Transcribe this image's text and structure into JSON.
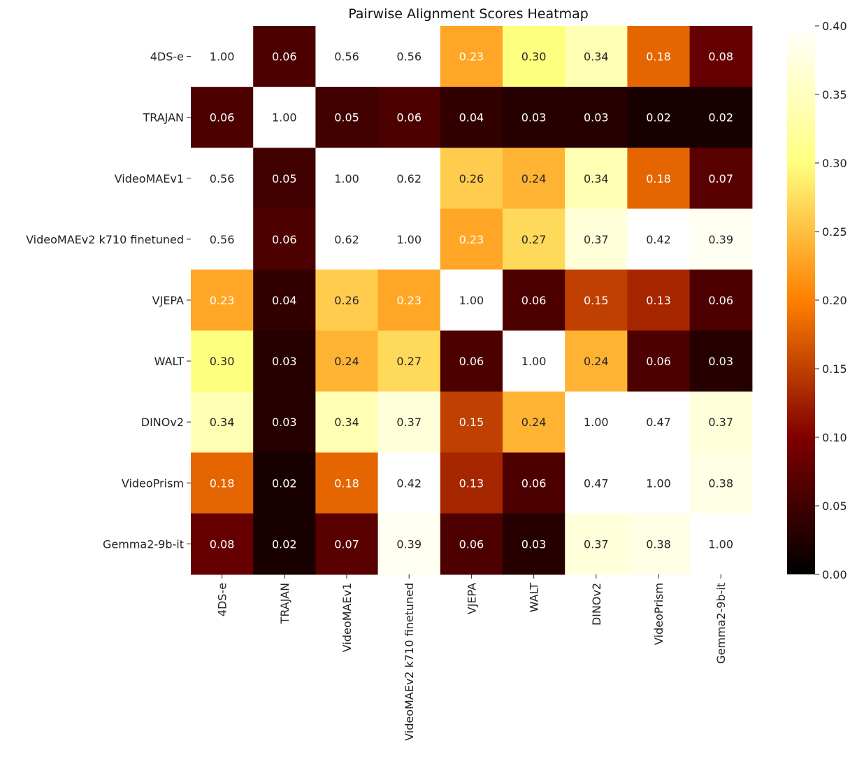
{
  "chart_data": {
    "type": "heatmap",
    "title": "Pairwise Alignment Scores Heatmap",
    "xlabel": "",
    "ylabel": "",
    "row_labels": [
      "4DS-e",
      "TRAJAN",
      "VideoMAEv1",
      "VideoMAEv2 k710 finetuned",
      "VJEPA",
      "WALT",
      "DINOv2",
      "VideoPrism",
      "Gemma2-9b-it"
    ],
    "col_labels": [
      "4DS-e",
      "TRAJAN",
      "VideoMAEv1",
      "VideoMAEv2 k710 finetuned",
      "VJEPA",
      "WALT",
      "DINOv2",
      "VideoPrism",
      "Gemma2-9b-it"
    ],
    "values": [
      [
        1.0,
        0.06,
        0.56,
        0.56,
        0.23,
        0.3,
        0.34,
        0.18,
        0.08
      ],
      [
        0.06,
        1.0,
        0.05,
        0.06,
        0.04,
        0.03,
        0.03,
        0.02,
        0.02
      ],
      [
        0.56,
        0.05,
        1.0,
        0.62,
        0.26,
        0.24,
        0.34,
        0.18,
        0.07
      ],
      [
        0.56,
        0.06,
        0.62,
        1.0,
        0.23,
        0.27,
        0.37,
        0.42,
        0.39
      ],
      [
        0.23,
        0.04,
        0.26,
        0.23,
        1.0,
        0.06,
        0.15,
        0.13,
        0.06
      ],
      [
        0.3,
        0.03,
        0.24,
        0.27,
        0.06,
        1.0,
        0.24,
        0.06,
        0.03
      ],
      [
        0.34,
        0.03,
        0.34,
        0.37,
        0.15,
        0.24,
        1.0,
        0.47,
        0.37
      ],
      [
        0.18,
        0.02,
        0.18,
        0.42,
        0.13,
        0.06,
        0.47,
        1.0,
        0.38
      ],
      [
        0.08,
        0.02,
        0.07,
        0.39,
        0.06,
        0.03,
        0.37,
        0.38,
        1.0
      ]
    ],
    "value_format": "0.00",
    "colormap": "afmhot",
    "color_range": [
      0.0,
      0.4
    ],
    "colorbar_ticks": [
      0.0,
      0.05,
      0.1,
      0.15,
      0.2,
      0.25,
      0.3,
      0.35,
      0.4
    ],
    "colorbar_tick_labels": [
      "0.00",
      "0.05",
      "0.10",
      "0.15",
      "0.20",
      "0.25",
      "0.30",
      "0.35",
      "0.40"
    ],
    "annotation_colors": {
      "on_dark": "#ffffff",
      "on_light": "#262626"
    },
    "grid": false
  }
}
